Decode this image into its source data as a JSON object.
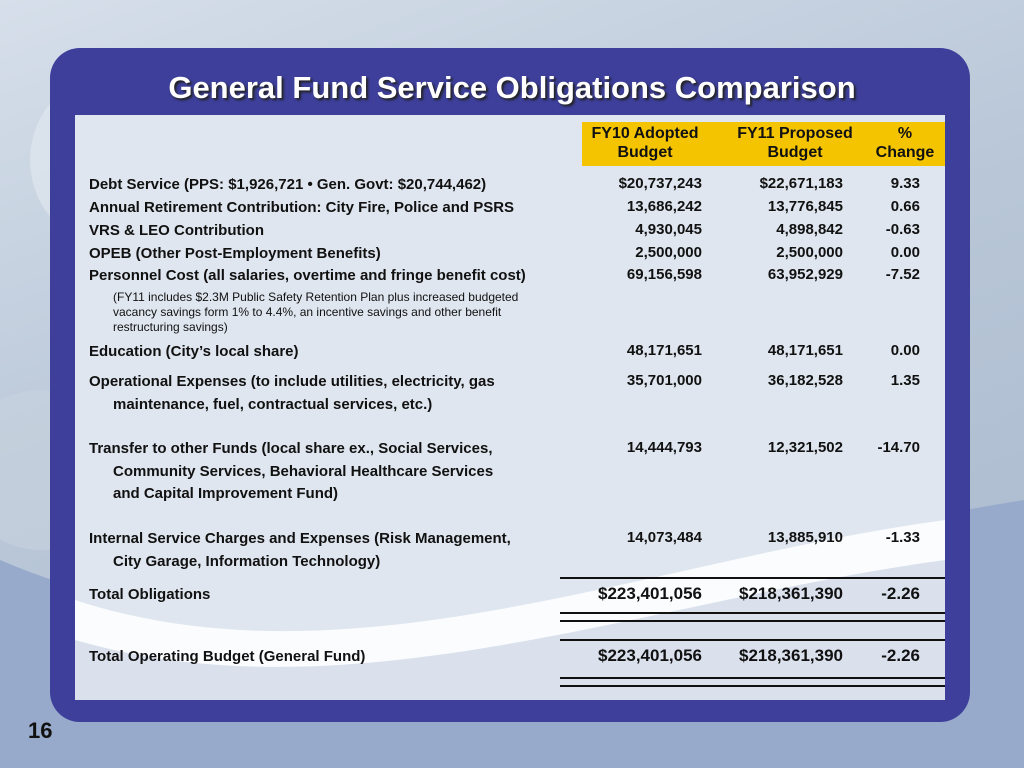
{
  "title": "General Fund Service Obligations Comparison",
  "table": {
    "headers": [
      [
        "FY10 Adopted",
        "Budget"
      ],
      [
        "FY11 Proposed",
        "Budget"
      ],
      [
        "%",
        "Change"
      ]
    ],
    "rows": [
      {
        "label": [
          "Debt Service (PPS: $1,926,721 • Gen. Govt: $20,744,462)"
        ],
        "fy10": "$20,737,243",
        "fy11": "$22,671,183",
        "change": "9.33"
      },
      {
        "label": [
          "Annual Retirement Contribution: City Fire, Police and PSRS"
        ],
        "fy10": "13,686,242",
        "fy11": "13,776,845",
        "change": "0.66"
      },
      {
        "label": [
          "VRS & LEO Contribution"
        ],
        "fy10": "4,930,045",
        "fy11": "4,898,842",
        "change": "-0.63"
      },
      {
        "label": [
          "OPEB (Other Post-Employment Benefits)"
        ],
        "fy10": "2,500,000",
        "fy11": "2,500,000",
        "change": "0.00"
      },
      {
        "label": [
          "Personnel Cost (all salaries, overtime and fringe benefit cost)"
        ],
        "fy10": "69,156,598",
        "fy11": "63,952,929",
        "change": "-7.52",
        "note": [
          "(FY11 includes $2.3M Public Safety Retention Plan plus increased budgeted",
          "vacancy savings form 1% to 4.4%, an incentive savings and other benefit",
          "restructuring savings)"
        ]
      },
      {
        "label": [
          "Education (City’s local share)"
        ],
        "fy10": "48,171,651",
        "fy11": "48,171,651",
        "change": "0.00"
      },
      {
        "label": [
          "Operational Expenses (to include utilities, electricity, gas",
          "maintenance, fuel, contractual services, etc.)"
        ],
        "fy10": "35,701,000",
        "fy11": "36,182,528",
        "change": "1.35"
      },
      {
        "label": [
          "Transfer to other Funds (local share ex., Social Services,",
          "Community Services, Behavioral Healthcare Services",
          "and Capital Improvement Fund)"
        ],
        "fy10": "14,444,793",
        "fy11": "12,321,502",
        "change": "-14.70"
      },
      {
        "label": [
          "Internal Service Charges and Expenses (Risk Management,",
          "City Garage, Information Technology)"
        ],
        "fy10": "14,073,484",
        "fy11": "13,885,910",
        "change": "-1.33"
      },
      {
        "label": [
          "Total Obligations"
        ],
        "fy10": "$223,401,056",
        "fy11": "$218,361,390",
        "change": "-2.26"
      },
      {
        "label": [
          "Total Operating Budget (General Fund)"
        ],
        "fy10": "$223,401,056",
        "fy11": "$218,361,390",
        "change": "-2.26"
      }
    ]
  },
  "page_number": "16"
}
